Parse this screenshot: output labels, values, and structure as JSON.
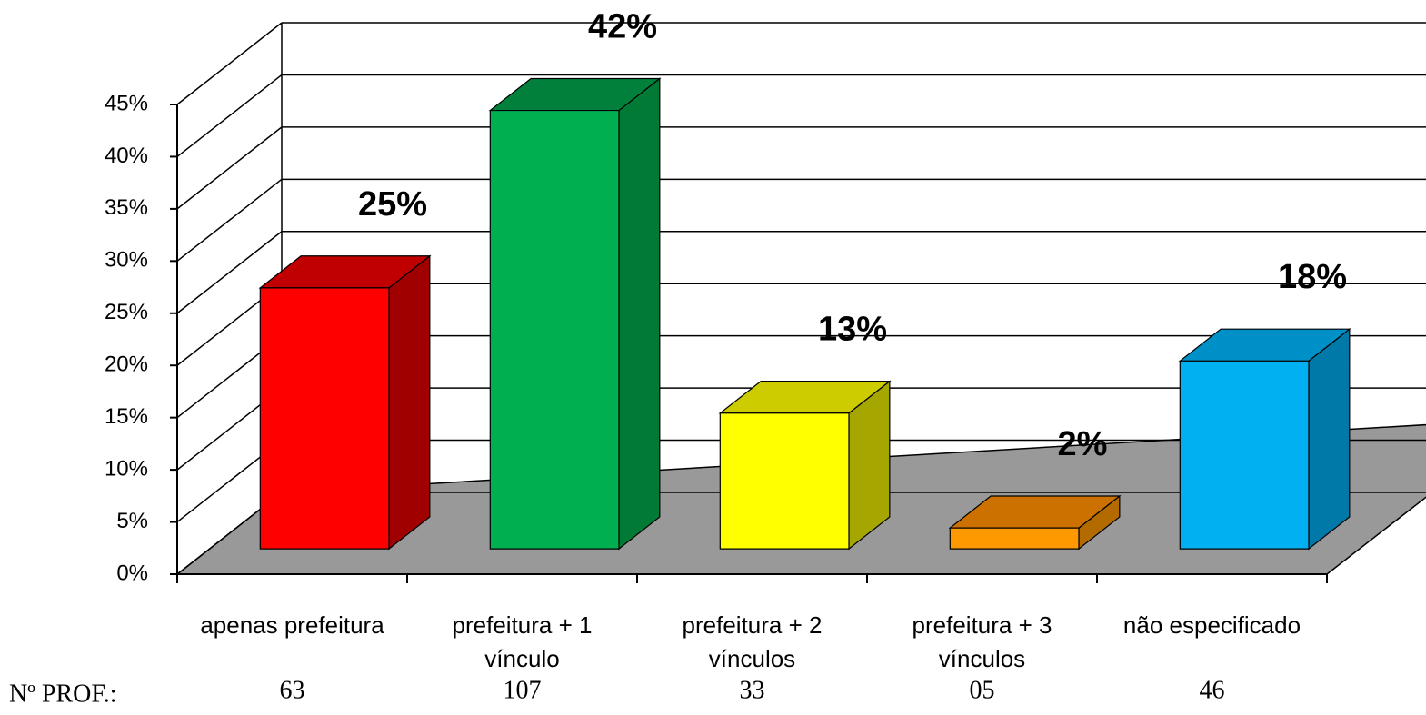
{
  "chart_data": {
    "type": "bar3d",
    "categories": [
      [
        "apenas prefeitura"
      ],
      [
        "prefeitura + 1",
        "vínculo"
      ],
      [
        "prefeitura + 2",
        "vínculos"
      ],
      [
        "prefeitura + 3",
        "vínculos"
      ],
      [
        "não especificado"
      ]
    ],
    "values": [
      25,
      42,
      13,
      2,
      18
    ],
    "value_labels": [
      "25%",
      "42%",
      "13%",
      "2%",
      "18%"
    ],
    "colors": [
      {
        "front": "#ff0000",
        "top": "#c00000",
        "side": "#a00000"
      },
      {
        "front": "#00b050",
        "top": "#00803a",
        "side": "#007a35"
      },
      {
        "front": "#ffff00",
        "top": "#cccc00",
        "side": "#a6a600"
      },
      {
        "front": "#ff9900",
        "top": "#cc7000",
        "side": "#b36b00"
      },
      {
        "front": "#00b0f0",
        "top": "#0090c8",
        "side": "#0078a8"
      }
    ],
    "ylim": [
      0,
      45
    ],
    "yticks": [
      {
        "value": 0,
        "label": "0%"
      },
      {
        "value": 5,
        "label": "5%"
      },
      {
        "value": 10,
        "label": "10%"
      },
      {
        "value": 15,
        "label": "15%"
      },
      {
        "value": 20,
        "label": "20%"
      },
      {
        "value": 25,
        "label": "25%"
      },
      {
        "value": 30,
        "label": "30%"
      },
      {
        "value": 35,
        "label": "35%"
      },
      {
        "value": 40,
        "label": "40%"
      },
      {
        "value": 45,
        "label": "45%"
      }
    ],
    "grid": true,
    "footer": {
      "label": "Nº PROF.:",
      "counts": [
        "63",
        "107",
        "33",
        "05",
        "46"
      ]
    }
  }
}
